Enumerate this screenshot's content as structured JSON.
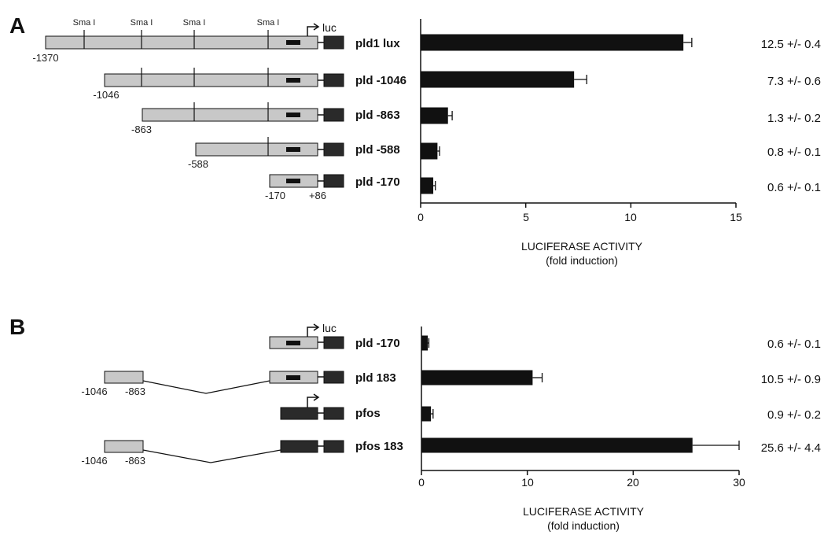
{
  "colors": {
    "promoter": "#c8c8c8",
    "dark": "#2a2a2a",
    "bar": "#111111",
    "line": "#111111"
  },
  "panel_a": {
    "letter": "A",
    "sites": [
      "Sma I",
      "Sma I",
      "Sma I",
      "Sma I"
    ],
    "luc": "luc",
    "constructs": [
      {
        "name": "pld1 lux",
        "value_text": "12.5 +/- 0.4",
        "start": "-1370"
      },
      {
        "name": "pld -1046",
        "value_text": "7.3 +/- 0.6",
        "start": "-1046"
      },
      {
        "name": "pld -863",
        "value_text": "1.3 +/- 0.2",
        "start": "-863"
      },
      {
        "name": "pld -588",
        "value_text": "0.8 +/- 0.1",
        "start": "-588"
      },
      {
        "name": "pld -170",
        "value_text": "0.6 +/- 0.1",
        "start": "-170",
        "end": "+86"
      }
    ],
    "xlabel_1": "LUCIFERASE ACTIVITY",
    "xlabel_2": "(fold induction)",
    "tick_labels": [
      "0",
      "5",
      "10",
      "15"
    ]
  },
  "panel_b": {
    "letter": "B",
    "luc": "luc",
    "constructs": [
      {
        "name": "pld -170",
        "value_text": "0.6 +/- 0.1"
      },
      {
        "name": "pld 183",
        "value_text": "10.5 +/- 0.9",
        "frag_start": "-1046",
        "frag_end": "-863"
      },
      {
        "name": "pfos",
        "value_text": "0.9 +/- 0.2"
      },
      {
        "name": "pfos 183",
        "value_text": "25.6 +/- 4.4",
        "frag_start": "-1046",
        "frag_end": "-863"
      }
    ],
    "xlabel_1": "LUCIFERASE ACTIVITY",
    "xlabel_2": "(fold induction)",
    "tick_labels": [
      "0",
      "10",
      "20",
      "30"
    ]
  },
  "chart_data": [
    {
      "type": "bar",
      "orientation": "horizontal",
      "categories": [
        "pld1 lux",
        "pld -1046",
        "pld -863",
        "pld -588",
        "pld -170"
      ],
      "values": [
        12.5,
        7.3,
        1.3,
        0.8,
        0.6
      ],
      "errors": [
        0.4,
        0.6,
        0.2,
        0.1,
        0.1
      ],
      "xlabel": "LUCIFERASE ACTIVITY (fold induction)",
      "xlim": [
        0,
        15
      ],
      "xticks": [
        0,
        5,
        10,
        15
      ]
    },
    {
      "type": "bar",
      "orientation": "horizontal",
      "categories": [
        "pld -170",
        "pld 183",
        "pfos",
        "pfos 183"
      ],
      "values": [
        0.6,
        10.5,
        0.9,
        25.6
      ],
      "errors": [
        0.1,
        0.9,
        0.2,
        4.4
      ],
      "xlabel": "LUCIFERASE ACTIVITY (fold induction)",
      "xlim": [
        0,
        30
      ],
      "xticks": [
        0,
        10,
        20,
        30
      ]
    }
  ]
}
